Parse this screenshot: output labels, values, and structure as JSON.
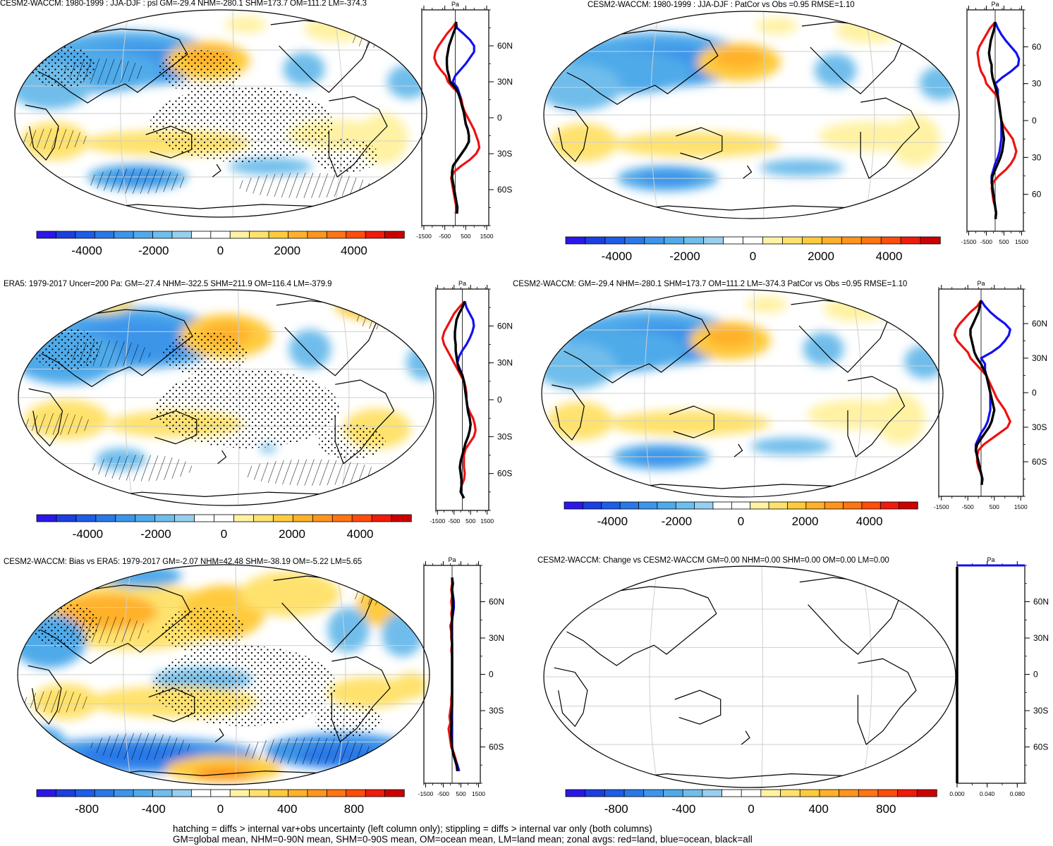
{
  "palette": [
    "#2b18e8",
    "#1b3fe0",
    "#1d5de8",
    "#2a78e8",
    "#3d95ea",
    "#50aaea",
    "#6fbdeb",
    "#97cfee",
    "#ffffff",
    "#ffffff",
    "#fff2a3",
    "#ffe26d",
    "#ffcb3c",
    "#ffb12a",
    "#ff951c",
    "#ff7512",
    "#ff4d0c",
    "#f01b0c",
    "#cc0000"
  ],
  "line_colors": {
    "land": "#ee1111",
    "ocean": "#1111ee",
    "all": "#000000"
  },
  "chart_data": [
    {
      "id": "p1",
      "type": "heatmap",
      "title": "CESM2-WACCM: 1980-1999 : JJA-DJF : psl GM=-29.4 NHM=-280.1 SHM=173.7 OM=111.2 LM=-374.3",
      "colorbar": {
        "ticks": [
          -4000,
          -2000,
          0,
          2000,
          4000
        ],
        "tick_labels": [
          "-4000",
          "-2000",
          "0",
          "2000",
          "4000"
        ],
        "range": [
          -5500,
          5500
        ]
      },
      "zonal": {
        "ylabel": "Pa",
        "lat_labels": [
          "60N",
          "30N",
          "0",
          "30S",
          "60S"
        ],
        "lat_ticks": [
          60,
          30,
          0,
          -30,
          -60
        ],
        "x_ticks": [
          -1500,
          -500,
          500,
          1500
        ],
        "x_tick_labels": [
          "-1500",
          "-500",
          "500",
          "1500"
        ],
        "xlim": [
          -1600,
          1600
        ],
        "show_lat_labels": true,
        "flat": false
      }
    },
    {
      "id": "p2",
      "type": "heatmap",
      "title": "CESM2-WACCM: 1980-1999 : JJA-DJF : PatCor vs Obs =0.95 RMSE=1.10",
      "colorbar": {
        "ticks": [
          -4000,
          -2000,
          0,
          2000,
          4000
        ],
        "tick_labels": [
          "-4000",
          "-2000",
          "0",
          "2000",
          "4000"
        ],
        "range": [
          -5500,
          5500
        ]
      },
      "zonal": {
        "ylabel": "Pa",
        "lat_labels": [
          "60",
          "30",
          "0",
          "30",
          "60"
        ],
        "lat_ticks": [
          60,
          30,
          0,
          -30,
          -60
        ],
        "x_ticks": [
          -1500,
          -500,
          500,
          1500
        ],
        "x_tick_labels": [
          "-1500",
          "-500",
          "500",
          "1500"
        ],
        "xlim": [
          -1600,
          1600
        ],
        "show_lat_labels": true,
        "flat": false
      }
    },
    {
      "id": "p3",
      "type": "heatmap",
      "title": "ERA5: 1979-2017 Uncer=200 Pa: GM=-27.4 NHM=-322.5 SHM=211.9 OM=116.4 LM=-379.9",
      "colorbar": {
        "ticks": [
          -4000,
          -2000,
          0,
          2000,
          4000
        ],
        "tick_labels": [
          "-4000",
          "-2000",
          "0",
          "2000",
          "4000"
        ],
        "range": [
          -5500,
          5500
        ]
      },
      "zonal": {
        "ylabel": "Pa",
        "lat_labels": [
          "60N",
          "30N",
          "0",
          "30S",
          "60S"
        ],
        "lat_ticks": [
          60,
          30,
          0,
          -30,
          -60
        ],
        "x_ticks": [
          -1500,
          -500,
          500,
          1500
        ],
        "x_tick_labels": [
          "-1500",
          "-500",
          "500",
          "1500"
        ],
        "xlim": [
          -1600,
          1600
        ],
        "show_lat_labels": true,
        "flat": false
      }
    },
    {
      "id": "p4",
      "type": "heatmap",
      "title": "CESM2-WACCM: GM=-29.4 NHM=-280.1 SHM=173.7 OM=111.2 LM=-374.3 PatCor vs Obs =0.95 RMSE=1.10",
      "colorbar": {
        "ticks": [
          -4000,
          -2000,
          0,
          2000,
          4000
        ],
        "tick_labels": [
          "-4000",
          "-2000",
          "0",
          "2000",
          "4000"
        ],
        "range": [
          -5500,
          5500
        ]
      },
      "zonal": {
        "ylabel": "Pa",
        "lat_labels": [
          "60N",
          "30N",
          "0",
          "30S",
          "60S"
        ],
        "lat_ticks": [
          60,
          30,
          0,
          -30,
          -60
        ],
        "x_ticks": [
          -1500,
          -500,
          500,
          1500
        ],
        "x_tick_labels": [
          "-1500",
          "-500",
          "500",
          "1500"
        ],
        "xlim": [
          -1600,
          1600
        ],
        "show_lat_labels": true,
        "flat": false
      }
    },
    {
      "id": "p5",
      "type": "heatmap",
      "title": "CESM2-WACCM: Bias vs ERA5: 1979-2017 GM=-2.07 NHM=42.48 SHM=-38.19 OM=-5.22 LM=5.65",
      "colorbar": {
        "ticks": [
          -800,
          -400,
          0,
          400,
          800
        ],
        "tick_labels": [
          "-800",
          "-400",
          "0",
          "400",
          "800"
        ],
        "range": [
          -1100,
          1100
        ]
      },
      "zonal": {
        "ylabel": "Pa",
        "lat_labels": [
          "60N",
          "30N",
          "0",
          "30S",
          "60S"
        ],
        "lat_ticks": [
          60,
          30,
          0,
          -30,
          -60
        ],
        "x_ticks": [
          -1500,
          -500,
          500,
          1500
        ],
        "x_tick_labels": [
          "-1500",
          "-500",
          "500",
          "1500"
        ],
        "xlim": [
          -1600,
          1600
        ],
        "show_lat_labels": true,
        "flat": false
      }
    },
    {
      "id": "p6",
      "type": "heatmap",
      "title": "CESM2-WACCM: Change vs CESM2-WACCM GM=0.00 NHM=0.00 SHM=0.00 OM=0.00 LM=0.00",
      "colorbar": {
        "ticks": [
          -800,
          -400,
          0,
          400,
          800
        ],
        "tick_labels": [
          "-800",
          "-400",
          "0",
          "400",
          "800"
        ],
        "range": [
          -1100,
          1100
        ]
      },
      "zonal": {
        "ylabel": "Pa",
        "lat_labels": [
          "60N",
          "30N",
          "0",
          "30S",
          "60S"
        ],
        "lat_ticks": [
          60,
          30,
          0,
          -30,
          -60
        ],
        "x_ticks": [
          0,
          0.04,
          0.08
        ],
        "x_tick_labels": [
          "0.000",
          "0.040",
          "0.080"
        ],
        "xlim": [
          0,
          0.09
        ],
        "show_lat_labels": true,
        "flat": true
      }
    }
  ],
  "profiles": {
    "p1": {
      "lat": [
        80,
        75,
        70,
        65,
        60,
        55,
        50,
        45,
        40,
        35,
        30,
        25,
        20,
        15,
        10,
        5,
        0,
        -5,
        -10,
        -15,
        -20,
        -25,
        -30,
        -35,
        -40,
        -45,
        -50,
        -55,
        -60,
        -65,
        -70,
        -75,
        -80
      ],
      "land": [
        50,
        -150,
        -400,
        -600,
        -800,
        -950,
        -1000,
        -900,
        -700,
        -450,
        -350,
        -100,
        200,
        300,
        350,
        450,
        600,
        750,
        900,
        1000,
        1100,
        1150,
        1000,
        700,
        300,
        -50,
        -200,
        -150,
        -100,
        -50,
        0,
        60,
        20
      ],
      "ocean": [
        40,
        80,
        400,
        700,
        900,
        900,
        700,
        500,
        250,
        0,
        -120,
        100,
        200,
        250,
        320,
        400,
        450,
        500,
        600,
        650,
        650,
        500,
        300,
        100,
        -100,
        -150,
        -150,
        -100,
        -50,
        0,
        50,
        100,
        80
      ],
      "all": [
        40,
        10,
        -100,
        -200,
        -300,
        -350,
        -400,
        -400,
        -380,
        -300,
        -250,
        0,
        150,
        250,
        320,
        400,
        450,
        500,
        600,
        650,
        650,
        500,
        300,
        100,
        -100,
        -150,
        -150,
        -100,
        -50,
        0,
        50,
        100,
        80
      ]
    },
    "p2": {
      "lat": [
        80,
        75,
        70,
        65,
        60,
        55,
        50,
        45,
        40,
        35,
        30,
        25,
        20,
        15,
        10,
        5,
        0,
        -5,
        -10,
        -15,
        -20,
        -25,
        -30,
        -35,
        -40,
        -45,
        -50,
        -55,
        -60,
        -65,
        -70,
        -75,
        -80
      ],
      "land": [
        0,
        -300,
        -500,
        -700,
        -900,
        -1000,
        -950,
        -900,
        -800,
        -600,
        -500,
        -200,
        100,
        200,
        250,
        300,
        350,
        500,
        750,
        1000,
        1100,
        1200,
        1100,
        900,
        600,
        200,
        -100,
        -200,
        -150,
        -100,
        0,
        50,
        20
      ],
      "ocean": [
        0,
        150,
        350,
        600,
        900,
        1200,
        1350,
        1300,
        900,
        400,
        0,
        150,
        150,
        200,
        250,
        300,
        350,
        350,
        350,
        350,
        300,
        250,
        150,
        0,
        -100,
        -200,
        -200,
        -150,
        -100,
        -50,
        0,
        50,
        20
      ],
      "all": [
        0,
        -50,
        -150,
        -250,
        -300,
        -350,
        -300,
        -200,
        -200,
        -150,
        -50,
        50,
        150,
        200,
        250,
        300,
        350,
        400,
        450,
        500,
        450,
        400,
        300,
        150,
        0,
        -150,
        -200,
        -150,
        -100,
        -50,
        0,
        50,
        20
      ]
    },
    "p3": {
      "lat": [
        80,
        75,
        70,
        65,
        60,
        55,
        50,
        45,
        40,
        35,
        30,
        25,
        20,
        15,
        10,
        5,
        0,
        -5,
        -10,
        -15,
        -20,
        -25,
        -30,
        -35,
        -40,
        -45,
        -50,
        -55,
        -60,
        -65,
        -70,
        -75,
        -80
      ],
      "land": [
        150,
        -200,
        -500,
        -700,
        -900,
        -1100,
        -1200,
        -1100,
        -900,
        -700,
        -500,
        -300,
        -100,
        100,
        200,
        250,
        250,
        300,
        450,
        650,
        750,
        800,
        700,
        450,
        200,
        100,
        100,
        100,
        150,
        100,
        -50,
        -100,
        100
      ],
      "ocean": [
        150,
        250,
        450,
        650,
        700,
        600,
        450,
        250,
        0,
        -200,
        -300,
        -150,
        0,
        100,
        150,
        200,
        250,
        300,
        350,
        450,
        500,
        450,
        350,
        200,
        100,
        0,
        -100,
        -150,
        -100,
        -50,
        -50,
        -100,
        100
      ],
      "all": [
        150,
        0,
        -200,
        -350,
        -400,
        -450,
        -450,
        -400,
        -400,
        -350,
        -300,
        -200,
        0,
        100,
        150,
        200,
        250,
        300,
        350,
        450,
        500,
        450,
        350,
        200,
        100,
        0,
        -100,
        -150,
        -100,
        -50,
        -50,
        -100,
        100
      ]
    },
    "p4": {
      "lat": [
        80,
        75,
        70,
        65,
        60,
        55,
        50,
        45,
        40,
        35,
        30,
        25,
        20,
        15,
        10,
        5,
        0,
        -5,
        -10,
        -15,
        -20,
        -25,
        -30,
        -35,
        -40,
        -45,
        -50,
        -55,
        -60,
        -65,
        -70,
        -75,
        -80
      ],
      "land": [
        0,
        -150,
        -400,
        -600,
        -800,
        -950,
        -1000,
        -900,
        -700,
        -500,
        -400,
        -200,
        0,
        200,
        300,
        400,
        500,
        600,
        750,
        900,
        1000,
        1100,
        1000,
        700,
        400,
        100,
        -100,
        -150,
        -150,
        -100,
        0,
        50,
        20
      ],
      "ocean": [
        0,
        150,
        350,
        600,
        900,
        1100,
        1050,
        900,
        700,
        400,
        0,
        150,
        150,
        200,
        250,
        300,
        350,
        350,
        350,
        350,
        300,
        250,
        150,
        0,
        -100,
        -200,
        -200,
        -150,
        -100,
        -50,
        0,
        50,
        20
      ],
      "all": [
        0,
        -50,
        -100,
        -200,
        -300,
        -400,
        -400,
        -350,
        -300,
        -250,
        -150,
        0,
        100,
        200,
        250,
        300,
        350,
        400,
        450,
        500,
        450,
        400,
        300,
        150,
        0,
        -150,
        -200,
        -150,
        -100,
        -50,
        0,
        50,
        20
      ]
    },
    "p5": {
      "lat": [
        80,
        75,
        70,
        65,
        60,
        55,
        50,
        45,
        40,
        35,
        30,
        25,
        20,
        15,
        10,
        5,
        0,
        -5,
        -10,
        -15,
        -20,
        -25,
        -30,
        -35,
        -40,
        -45,
        -50,
        -55,
        -60,
        -65,
        -70,
        -75,
        -80
      ],
      "land": [
        0,
        0,
        -50,
        0,
        -50,
        0,
        -50,
        0,
        -100,
        -50,
        -50,
        0,
        -50,
        0,
        0,
        0,
        0,
        0,
        0,
        0,
        -50,
        -50,
        -100,
        -150,
        -100,
        -200,
        -150,
        -100,
        -50,
        100,
        200,
        300,
        400
      ],
      "ocean": [
        0,
        50,
        0,
        50,
        100,
        100,
        50,
        0,
        0,
        0,
        0,
        0,
        0,
        0,
        0,
        0,
        0,
        0,
        0,
        0,
        0,
        0,
        0,
        0,
        0,
        0,
        0,
        0,
        0,
        50,
        150,
        300,
        400
      ],
      "all": [
        0,
        30,
        0,
        30,
        50,
        50,
        20,
        0,
        -30,
        -20,
        -20,
        0,
        0,
        0,
        0,
        0,
        0,
        0,
        0,
        0,
        0,
        0,
        -20,
        -50,
        -30,
        -50,
        -50,
        -30,
        0,
        50,
        150,
        250,
        300
      ]
    }
  },
  "footer": {
    "line1": "hatching = diffs > internal var+obs uncertainty (left column only); stippling = diffs > internal var only (both columns)",
    "line2": "GM=global mean, NHM=0-90N mean, SHM=0-90S mean, OM=ocean mean, LM=land mean; zonal avgs: red=land, blue=ocean, black=all"
  }
}
